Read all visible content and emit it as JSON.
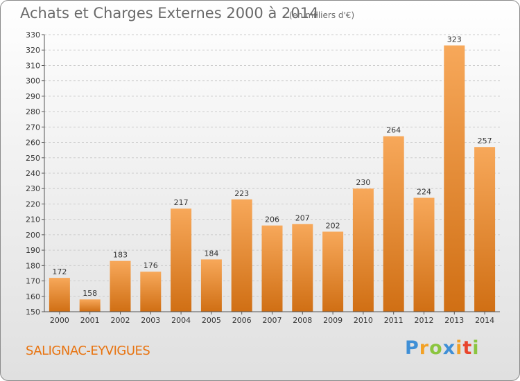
{
  "header": {
    "title": "Achats et Charges Externes 2000 à 2014",
    "subtitle": "(en milliers d'€)"
  },
  "footer": {
    "commune": "SALIGNAC-EYVIGUES",
    "brand": "Proxiti"
  },
  "colors": {
    "bar_top": "#f7a85a",
    "bar_bottom": "#d06f14",
    "axis": "#555555",
    "grid": "#cccccc",
    "commune": "#e8730f"
  },
  "chart_data": {
    "type": "bar",
    "title": "Achats et Charges Externes 2000 à 2014",
    "subtitle": "(en milliers d'€)",
    "categories": [
      "2000",
      "2001",
      "2002",
      "2003",
      "2004",
      "2005",
      "2006",
      "2007",
      "2008",
      "2009",
      "2010",
      "2011",
      "2012",
      "2013",
      "2014"
    ],
    "values": [
      172,
      158,
      183,
      176,
      217,
      184,
      223,
      206,
      207,
      202,
      230,
      264,
      224,
      323,
      257
    ],
    "ylim": [
      150,
      330
    ],
    "ytick_step": 10,
    "grid": true,
    "data_labels": true
  }
}
